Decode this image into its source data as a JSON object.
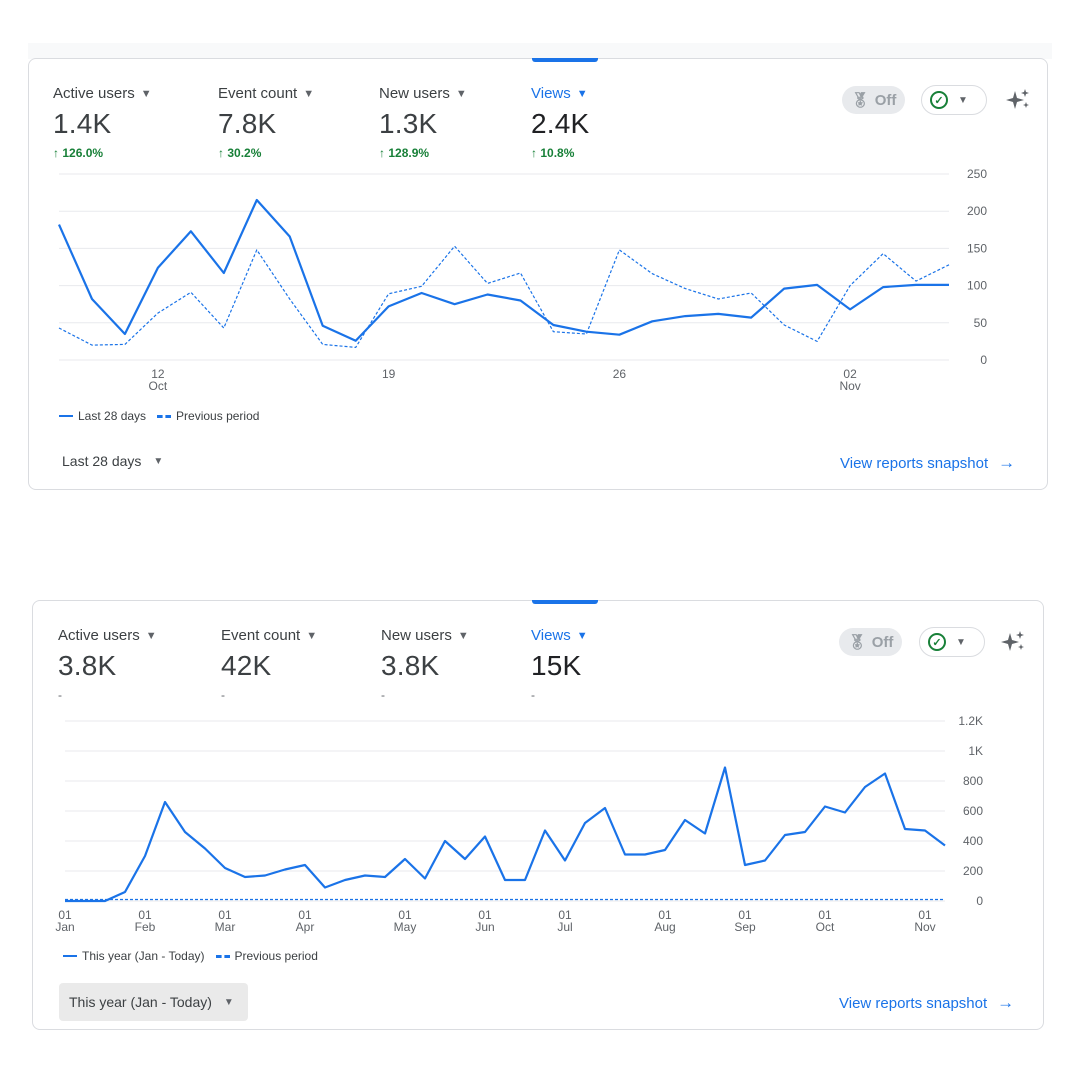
{
  "colors": {
    "accent": "#1a73e8",
    "positive": "#188038",
    "grid": "#e8eaed"
  },
  "card1": {
    "metrics": [
      {
        "label": "Active users",
        "value": "1.4K",
        "delta": "126.0%"
      },
      {
        "label": "Event count",
        "value": "7.8K",
        "delta": "30.2%"
      },
      {
        "label": "New users",
        "value": "1.3K",
        "delta": "128.9%"
      },
      {
        "label": "Views",
        "value": "2.4K",
        "delta": "10.8%"
      }
    ],
    "off_chip_label": "Off",
    "legend": {
      "current": "Last 28 days",
      "previous": "Previous period"
    },
    "range_label": "Last 28 days",
    "snapshot_link": "View reports snapshot"
  },
  "card2": {
    "metrics": [
      {
        "label": "Active users",
        "value": "3.8K",
        "delta": "-"
      },
      {
        "label": "Event count",
        "value": "42K",
        "delta": "-"
      },
      {
        "label": "New users",
        "value": "3.8K",
        "delta": "-"
      },
      {
        "label": "Views",
        "value": "15K",
        "delta": "-"
      }
    ],
    "off_chip_label": "Off",
    "legend": {
      "current": "This year (Jan - Today)",
      "previous": "Previous period"
    },
    "range_label": "This year (Jan - Today)",
    "snapshot_link": "View reports snapshot"
  },
  "chart_data": [
    {
      "type": "line",
      "x": [
        "Oct 9",
        "Oct 10",
        "Oct 11",
        "Oct 12",
        "Oct 13",
        "Oct 14",
        "Oct 15",
        "Oct 16",
        "Oct 17",
        "Oct 18",
        "Oct 19",
        "Oct 20",
        "Oct 21",
        "Oct 22",
        "Oct 23",
        "Oct 24",
        "Oct 25",
        "Oct 26",
        "Oct 27",
        "Oct 28",
        "Oct 29",
        "Oct 30",
        "Oct 31",
        "Nov 1",
        "Nov 2",
        "Nov 3",
        "Nov 4",
        "Nov 5"
      ],
      "x_ticks": [
        {
          "index": 3,
          "day": "12",
          "month": "Oct"
        },
        {
          "index": 10,
          "day": "19",
          "month": ""
        },
        {
          "index": 17,
          "day": "26",
          "month": ""
        },
        {
          "index": 24,
          "day": "02",
          "month": "Nov"
        }
      ],
      "y_ticks": [
        "0",
        "50",
        "100",
        "150",
        "200",
        "250"
      ],
      "ylim": [
        0,
        250
      ],
      "series": [
        {
          "name": "Last 28 days",
          "style": "solid",
          "values": [
            182,
            82,
            35,
            124,
            173,
            117,
            215,
            166,
            46,
            26,
            72,
            90,
            75,
            88,
            80,
            47,
            38,
            34,
            52,
            59,
            62,
            57,
            96,
            101,
            68,
            98,
            101,
            101
          ]
        },
        {
          "name": "Previous period",
          "style": "dashed",
          "values": [
            43,
            20,
            21,
            63,
            91,
            43,
            148,
            82,
            21,
            17,
            89,
            99,
            153,
            103,
            117,
            38,
            35,
            148,
            116,
            96,
            82,
            90,
            47,
            25,
            100,
            143,
            106,
            128
          ]
        }
      ]
    },
    {
      "type": "line",
      "x_ticks": [
        {
          "index": 0,
          "day": "01",
          "month": "Jan"
        },
        {
          "index": 4,
          "day": "01",
          "month": "Feb"
        },
        {
          "index": 8,
          "day": "01",
          "month": "Mar"
        },
        {
          "index": 12,
          "day": "01",
          "month": "Apr"
        },
        {
          "index": 17,
          "day": "01",
          "month": "May"
        },
        {
          "index": 21,
          "day": "01",
          "month": "Jun"
        },
        {
          "index": 25,
          "day": "01",
          "month": "Jul"
        },
        {
          "index": 30,
          "day": "01",
          "month": "Aug"
        },
        {
          "index": 34,
          "day": "01",
          "month": "Sep"
        },
        {
          "index": 38,
          "day": "01",
          "month": "Oct"
        },
        {
          "index": 43,
          "day": "01",
          "month": "Nov"
        }
      ],
      "y_ticks": [
        "0",
        "200",
        "400",
        "600",
        "800",
        "1K",
        "1.2K"
      ],
      "ylim": [
        0,
        1200
      ],
      "series": [
        {
          "name": "This year (Jan - Today)",
          "style": "solid",
          "values": [
            0,
            0,
            0,
            60,
            300,
            660,
            460,
            350,
            220,
            160,
            170,
            210,
            240,
            90,
            140,
            170,
            160,
            280,
            150,
            400,
            280,
            430,
            140,
            140,
            470,
            270,
            520,
            620,
            310,
            310,
            340,
            540,
            450,
            890,
            240,
            270,
            440,
            460,
            630,
            590,
            760,
            850,
            480,
            470,
            370
          ]
        },
        {
          "name": "Previous period",
          "style": "dashed",
          "values": [
            10,
            10,
            10,
            10,
            10,
            10,
            10,
            10,
            10,
            10,
            10,
            10,
            10,
            10,
            10,
            10,
            10,
            10,
            10,
            10,
            10,
            10,
            10,
            10,
            10,
            10,
            10,
            10,
            10,
            10,
            10,
            10,
            10,
            10,
            10,
            10,
            10,
            10,
            10,
            10,
            10,
            10,
            10,
            10,
            10
          ]
        }
      ]
    }
  ]
}
